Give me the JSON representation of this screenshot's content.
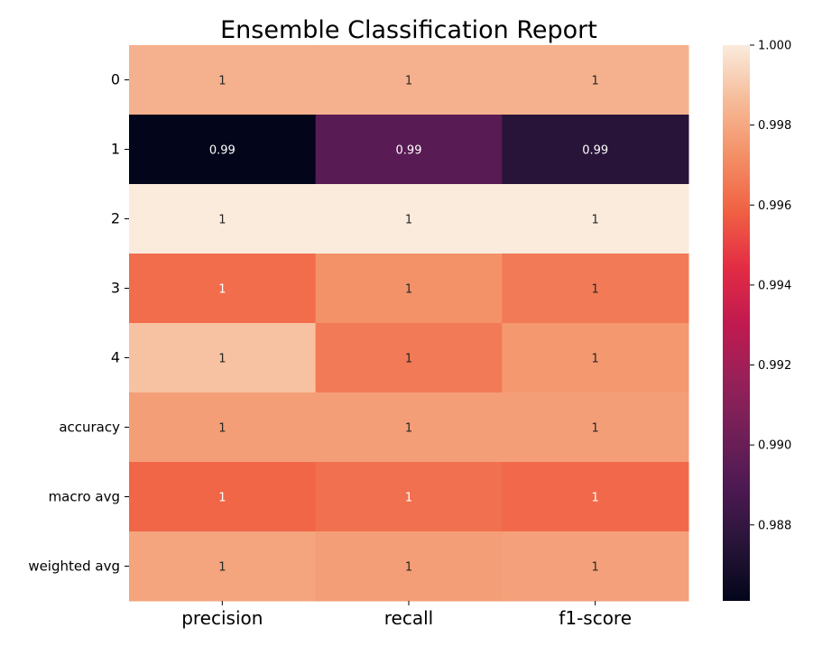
{
  "chart_data": {
    "type": "heatmap",
    "title": "Ensemble Classification Report",
    "xlabel": "",
    "ylabel": "",
    "columns": [
      "precision",
      "recall",
      "f1-score"
    ],
    "rows": [
      "0",
      "1",
      "2",
      "3",
      "4",
      "accuracy",
      "macro avg",
      "weighted avg"
    ],
    "values": [
      [
        0.9983,
        0.9983,
        0.9983
      ],
      [
        0.9861,
        0.9894,
        0.9876
      ],
      [
        1.0,
        1.0,
        1.0
      ],
      [
        0.9962,
        0.9973,
        0.9966
      ],
      [
        0.9988,
        0.9966,
        0.9975
      ],
      [
        0.9977,
        0.9977,
        0.9977
      ],
      [
        0.996,
        0.9963,
        0.9961
      ],
      [
        0.9979,
        0.9977,
        0.9978
      ]
    ],
    "annotations": [
      [
        "1",
        "1",
        "1"
      ],
      [
        "0.99",
        "0.99",
        "0.99"
      ],
      [
        "1",
        "1",
        "1"
      ],
      [
        "1",
        "1",
        "1"
      ],
      [
        "1",
        "1",
        "1"
      ],
      [
        "1",
        "1",
        "1"
      ],
      [
        "1",
        "1",
        "1"
      ],
      [
        "1",
        "1",
        "1"
      ]
    ],
    "colorbar": {
      "min": 0.9861,
      "max": 1.0,
      "ticks": [
        0.988,
        0.99,
        0.992,
        0.994,
        0.996,
        0.998,
        1.0
      ],
      "tick_labels": [
        "0.988",
        "0.990",
        "0.992",
        "0.994",
        "0.996",
        "0.998",
        "1.000"
      ],
      "colormap": "rocket"
    },
    "grid": false
  }
}
